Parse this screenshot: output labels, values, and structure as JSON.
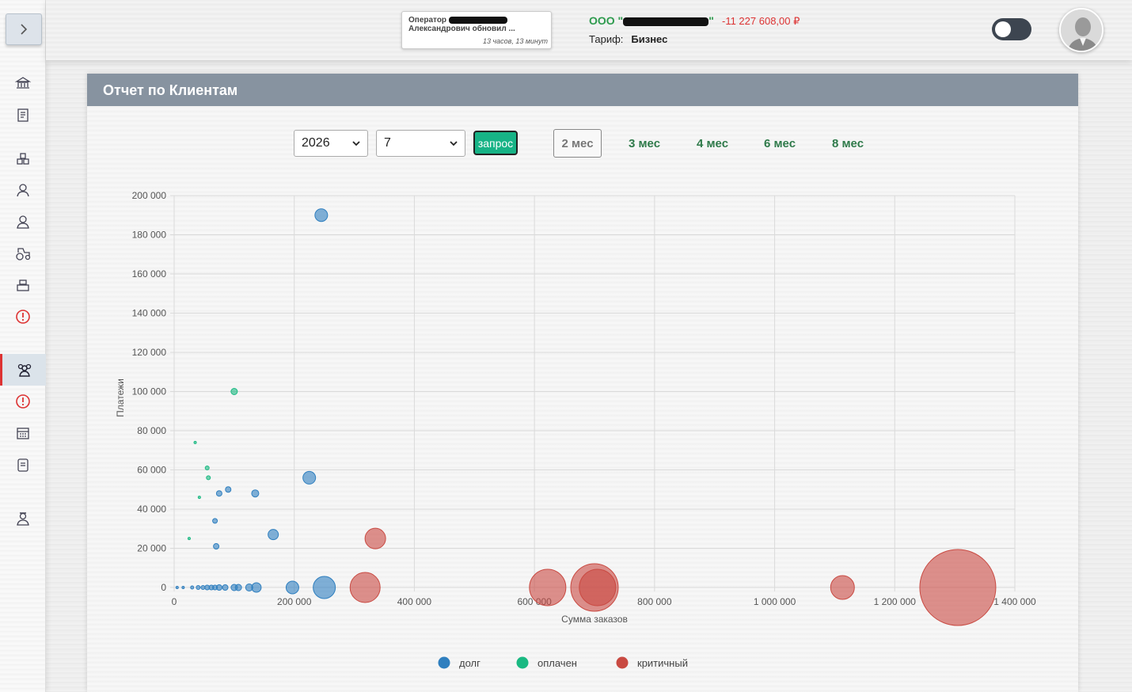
{
  "sidebar": {
    "toggle_icon": "chevron-right-icon",
    "items": [
      {
        "icon": "bank-icon",
        "top": 85
      },
      {
        "icon": "documents-icon",
        "top": 125
      },
      {
        "icon": "warehouse-icon",
        "top": 180
      },
      {
        "icon": "worker-icon",
        "top": 220
      },
      {
        "icon": "operator-icon",
        "top": 260
      },
      {
        "icon": "tractor-icon",
        "top": 300
      },
      {
        "icon": "cash-register-icon",
        "top": 340
      },
      {
        "icon": "alert-icon",
        "top": 380
      },
      {
        "icon": "clients-icon",
        "top": 447,
        "active": true
      },
      {
        "icon": "alert-icon",
        "top": 487
      },
      {
        "icon": "calendar-icon",
        "top": 527
      },
      {
        "icon": "report-icon",
        "top": 567
      },
      {
        "icon": "admin-icon",
        "top": 635
      }
    ]
  },
  "header": {
    "notice_line1": "Оператор",
    "notice_line2": "Александрович обновил ...",
    "notice_time": "13 часов, 13 минут",
    "company_prefix": "ООО \"",
    "company_suffix": "\"",
    "balance": "-11 227 608,00 ₽",
    "tariff_label": "Тариф:",
    "tariff_value": "Бизнес"
  },
  "panel": {
    "title": "Отчет по Клиентам",
    "year": "2026",
    "month": "7",
    "query_button": "запрос",
    "periods": [
      "2 мес",
      "3 мес",
      "4 мес",
      "6 мес",
      "8 мес"
    ],
    "active_period": 0
  },
  "chart_data": {
    "type": "bubble",
    "xlabel": "Сумма заказов",
    "ylabel": "Платежи",
    "xlim": [
      0,
      1400000
    ],
    "ylim": [
      0,
      200000
    ],
    "x_ticks": [
      "0",
      "200 000",
      "400 000",
      "600 000",
      "800 000",
      "1 000 000",
      "1 200 000",
      "1 400 000"
    ],
    "y_ticks": [
      "0",
      "20 000",
      "40 000",
      "60 000",
      "80 000",
      "100 000",
      "120 000",
      "140 000",
      "160 000",
      "180 000",
      "200 000"
    ],
    "grid": true,
    "legend_position": "bottom",
    "series": [
      {
        "name": "долг",
        "color": "#2f7fbf",
        "points": [
          [
            245000,
            190000,
            8
          ],
          [
            225000,
            56000,
            8
          ],
          [
            165000,
            27000,
            6.5
          ],
          [
            135000,
            48000,
            4.5
          ],
          [
            90000,
            50000,
            3.5
          ],
          [
            75000,
            48000,
            3.5
          ],
          [
            68000,
            34000,
            3
          ],
          [
            70000,
            21000,
            3.5
          ],
          [
            250000,
            0,
            14
          ],
          [
            197000,
            0,
            8
          ],
          [
            137000,
            0,
            6
          ],
          [
            125000,
            0,
            4.5
          ],
          [
            107000,
            0,
            4
          ],
          [
            100000,
            0,
            4
          ],
          [
            85000,
            0,
            3.5
          ],
          [
            75000,
            0,
            3.5
          ],
          [
            68000,
            0,
            3
          ],
          [
            62000,
            0,
            3
          ],
          [
            55000,
            0,
            3
          ],
          [
            48000,
            0,
            2.5
          ],
          [
            40000,
            0,
            2.5
          ],
          [
            30000,
            0,
            2
          ],
          [
            15000,
            0,
            1.5
          ],
          [
            5000,
            0,
            1.5
          ]
        ]
      },
      {
        "name": "оплачен",
        "color": "#1ab982",
        "points": [
          [
            100000,
            100000,
            4
          ],
          [
            35000,
            74000,
            1.5
          ],
          [
            55000,
            61000,
            2.5
          ],
          [
            57000,
            56000,
            2.5
          ],
          [
            42000,
            46000,
            1.5
          ],
          [
            25000,
            25000,
            1.5
          ]
        ]
      },
      {
        "name": "критичный",
        "color": "#c94a42",
        "points": [
          [
            335000,
            25000,
            13
          ],
          [
            318000,
            0,
            19
          ],
          [
            622000,
            0,
            23
          ],
          [
            700000,
            0,
            30
          ],
          [
            705000,
            0,
            23
          ],
          [
            1113000,
            0,
            15
          ],
          [
            1305000,
            0,
            48
          ]
        ]
      }
    ]
  }
}
